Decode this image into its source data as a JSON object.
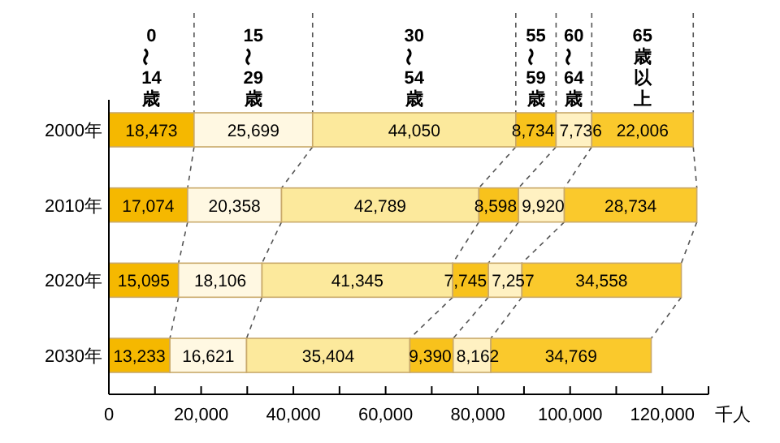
{
  "chart_data": {
    "type": "bar",
    "orientation": "horizontal",
    "stacked": true,
    "categories": [
      "2000年",
      "2010年",
      "2020年",
      "2030年"
    ],
    "series": [
      {
        "name": "0〜14歳",
        "color": "#f5b800",
        "values": [
          18473,
          17074,
          15095,
          13233
        ],
        "value_labels": [
          "18,473",
          "17,074",
          "15,095",
          "13,233"
        ]
      },
      {
        "name": "15〜29歳",
        "color": "#fff8e2",
        "values": [
          25699,
          20358,
          18106,
          16621
        ],
        "value_labels": [
          "25,699",
          "20,358",
          "18,106",
          "16,621"
        ]
      },
      {
        "name": "30〜54歳",
        "color": "#fce99c",
        "values": [
          44050,
          42789,
          41345,
          35404
        ],
        "value_labels": [
          "44,050",
          "42,789",
          "41,345",
          "35,404"
        ]
      },
      {
        "name": "55〜59歳",
        "color": "#f8c21c",
        "values": [
          8734,
          8598,
          7745,
          9390
        ],
        "value_labels": [
          "8,734",
          "8,598",
          "7,745",
          "9,390"
        ]
      },
      {
        "name": "60〜64歳",
        "color": "#fff1c2",
        "values": [
          7736,
          9920,
          7257,
          8162
        ],
        "value_labels": [
          "7,736",
          "9,920",
          "7,257",
          "8,162"
        ]
      },
      {
        "name": "65歳以上",
        "color": "#fac92c",
        "values": [
          22006,
          28734,
          34558,
          34769
        ],
        "value_labels": [
          "22,006",
          "28,734",
          "34,558",
          "34,769"
        ]
      }
    ],
    "xlim": [
      0,
      130000
    ],
    "xticks": [
      0,
      {
        "value": 10000,
        "label": null
      },
      "20,000",
      {
        "value": 30000,
        "label": null
      },
      {
        "value": 40000,
        "label": "40,000"
      },
      {
        "value": 50000,
        "label": null
      },
      {
        "value": 60000,
        "label": "60,000"
      },
      {
        "value": 70000,
        "label": null
      },
      {
        "value": 80000,
        "label": "80,000"
      },
      {
        "value": 90000,
        "label": null
      },
      {
        "value": 100000,
        "label": "100,000"
      },
      {
        "value": 110000,
        "label": null
      },
      {
        "value": 120000,
        "label": "120,000"
      },
      {
        "value": 130000,
        "label": null
      }
    ],
    "xlabel": "千人",
    "legend": "top"
  }
}
